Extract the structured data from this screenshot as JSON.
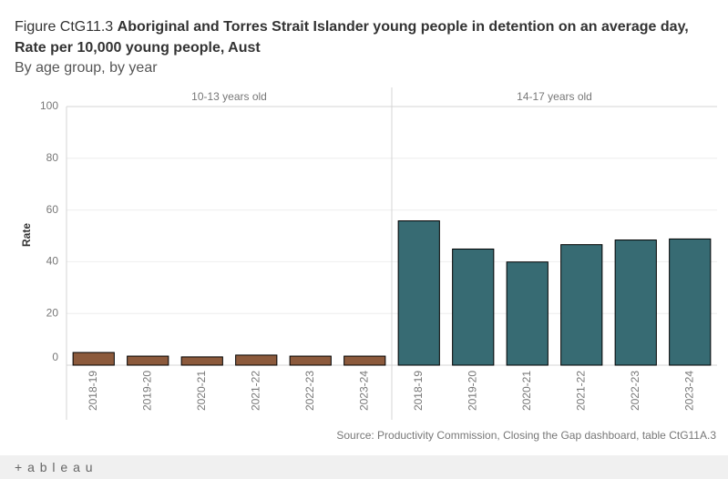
{
  "chart_data": {
    "type": "bar",
    "title_prefix": "Figure CtG11.3",
    "title": "Aboriginal and Torres Strait Islander young people in detention on an average day, Rate per 10,000 young people, Aust",
    "subtitle": "By age group, by year",
    "ylabel": "Rate",
    "categories": [
      "2018-19",
      "2019-20",
      "2020-21",
      "2021-22",
      "2022-23",
      "2023-24"
    ],
    "series": [
      {
        "name": "10-13 years old",
        "color": "#8c5a3c",
        "values": [
          4.9,
          3.5,
          3.2,
          3.9,
          3.5,
          3.5
        ]
      },
      {
        "name": "14-17 years old",
        "color": "#376b73",
        "values": [
          55.8,
          44.9,
          39.9,
          46.6,
          48.4,
          48.8
        ]
      }
    ],
    "ylim": [
      0,
      100
    ],
    "yticks": [
      0,
      20,
      40,
      60,
      80,
      100
    ],
    "grid": true,
    "source": "Source: Productivity Commission, Closing the Gap dashboard, table CtG11A.3",
    "footer_logo": "+ a b l e a u"
  }
}
